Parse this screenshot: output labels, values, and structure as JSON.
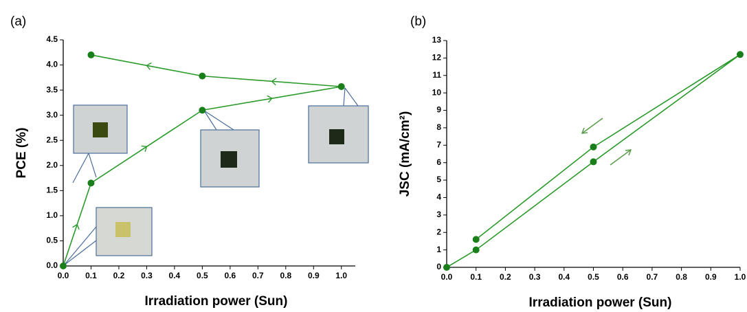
{
  "chart_data": [
    {
      "type": "line",
      "panel_label": "(a)",
      "x_label": "Irradiation power (Sun)",
      "y_label": "PCE (%)",
      "xlim": [
        0,
        1.05
      ],
      "ylim": [
        0,
        4.5
      ],
      "xticks": [
        {
          "value": 0,
          "label": "0.0"
        },
        0.1,
        0.2,
        0.3,
        0.4,
        0.5,
        0.6,
        0.7,
        0.8,
        0.9,
        {
          "value": 1,
          "label": "1.0"
        }
      ],
      "yticks": [
        {
          "value": 0,
          "label": "0.0"
        },
        0.5,
        {
          "value": 1,
          "label": "1.0"
        },
        1.5,
        {
          "value": 2,
          "label": "2.0"
        },
        2.5,
        {
          "value": 3,
          "label": "3.0"
        },
        3.5,
        {
          "value": 4,
          "label": "4.0"
        },
        4.5
      ],
      "x": [
        0,
        0.1,
        0.5,
        1.0,
        0.5,
        0.1
      ],
      "series": [
        {
          "color": "#2a9a2a",
          "marker_color": "#1a7f1a",
          "values": [
            0,
            1.65,
            3.1,
            3.57,
            3.78,
            4.2
          ]
        }
      ]
    },
    {
      "type": "line",
      "panel_label": "(b)",
      "x_label": "Irradiation power (Sun)",
      "y_label": "JSC (mA/cm²)",
      "xlim": [
        0,
        1.0
      ],
      "ylim": [
        0,
        13
      ],
      "xticks": [
        {
          "value": 0,
          "label": "0.0"
        },
        0.1,
        0.2,
        0.3,
        0.4,
        0.5,
        0.6,
        0.7,
        0.8,
        0.9,
        {
          "value": 1,
          "label": "1.0"
        }
      ],
      "yticks": [
        0,
        1,
        2,
        3,
        4,
        5,
        6,
        7,
        8,
        9,
        10,
        11,
        12,
        13
      ],
      "x": [
        0,
        0.1,
        0.5,
        1.0,
        0.5,
        0.1
      ],
      "series": [
        {
          "color": "#2a9a2a",
          "marker_color": "#1a7f1a",
          "values": [
            0,
            1.0,
            6.05,
            12.2,
            6.9,
            1.6
          ]
        }
      ]
    }
  ]
}
